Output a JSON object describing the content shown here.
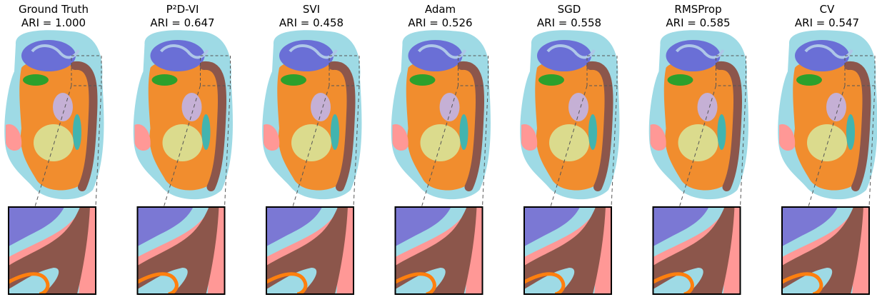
{
  "panels": [
    {
      "title": "Ground Truth",
      "subtitle": "ARI = 1.000"
    },
    {
      "title": "P²D-VI",
      "subtitle": "ARI = 0.647"
    },
    {
      "title": "SVI",
      "subtitle": "ARI = 0.458"
    },
    {
      "title": "Adam",
      "subtitle": "ARI = 0.526"
    },
    {
      "title": "SGD",
      "subtitle": "ARI = 0.558"
    },
    {
      "title": "RMSProp",
      "subtitle": "ARI = 0.585"
    },
    {
      "title": "CV",
      "subtitle": "ARI = 0.547"
    }
  ]
}
